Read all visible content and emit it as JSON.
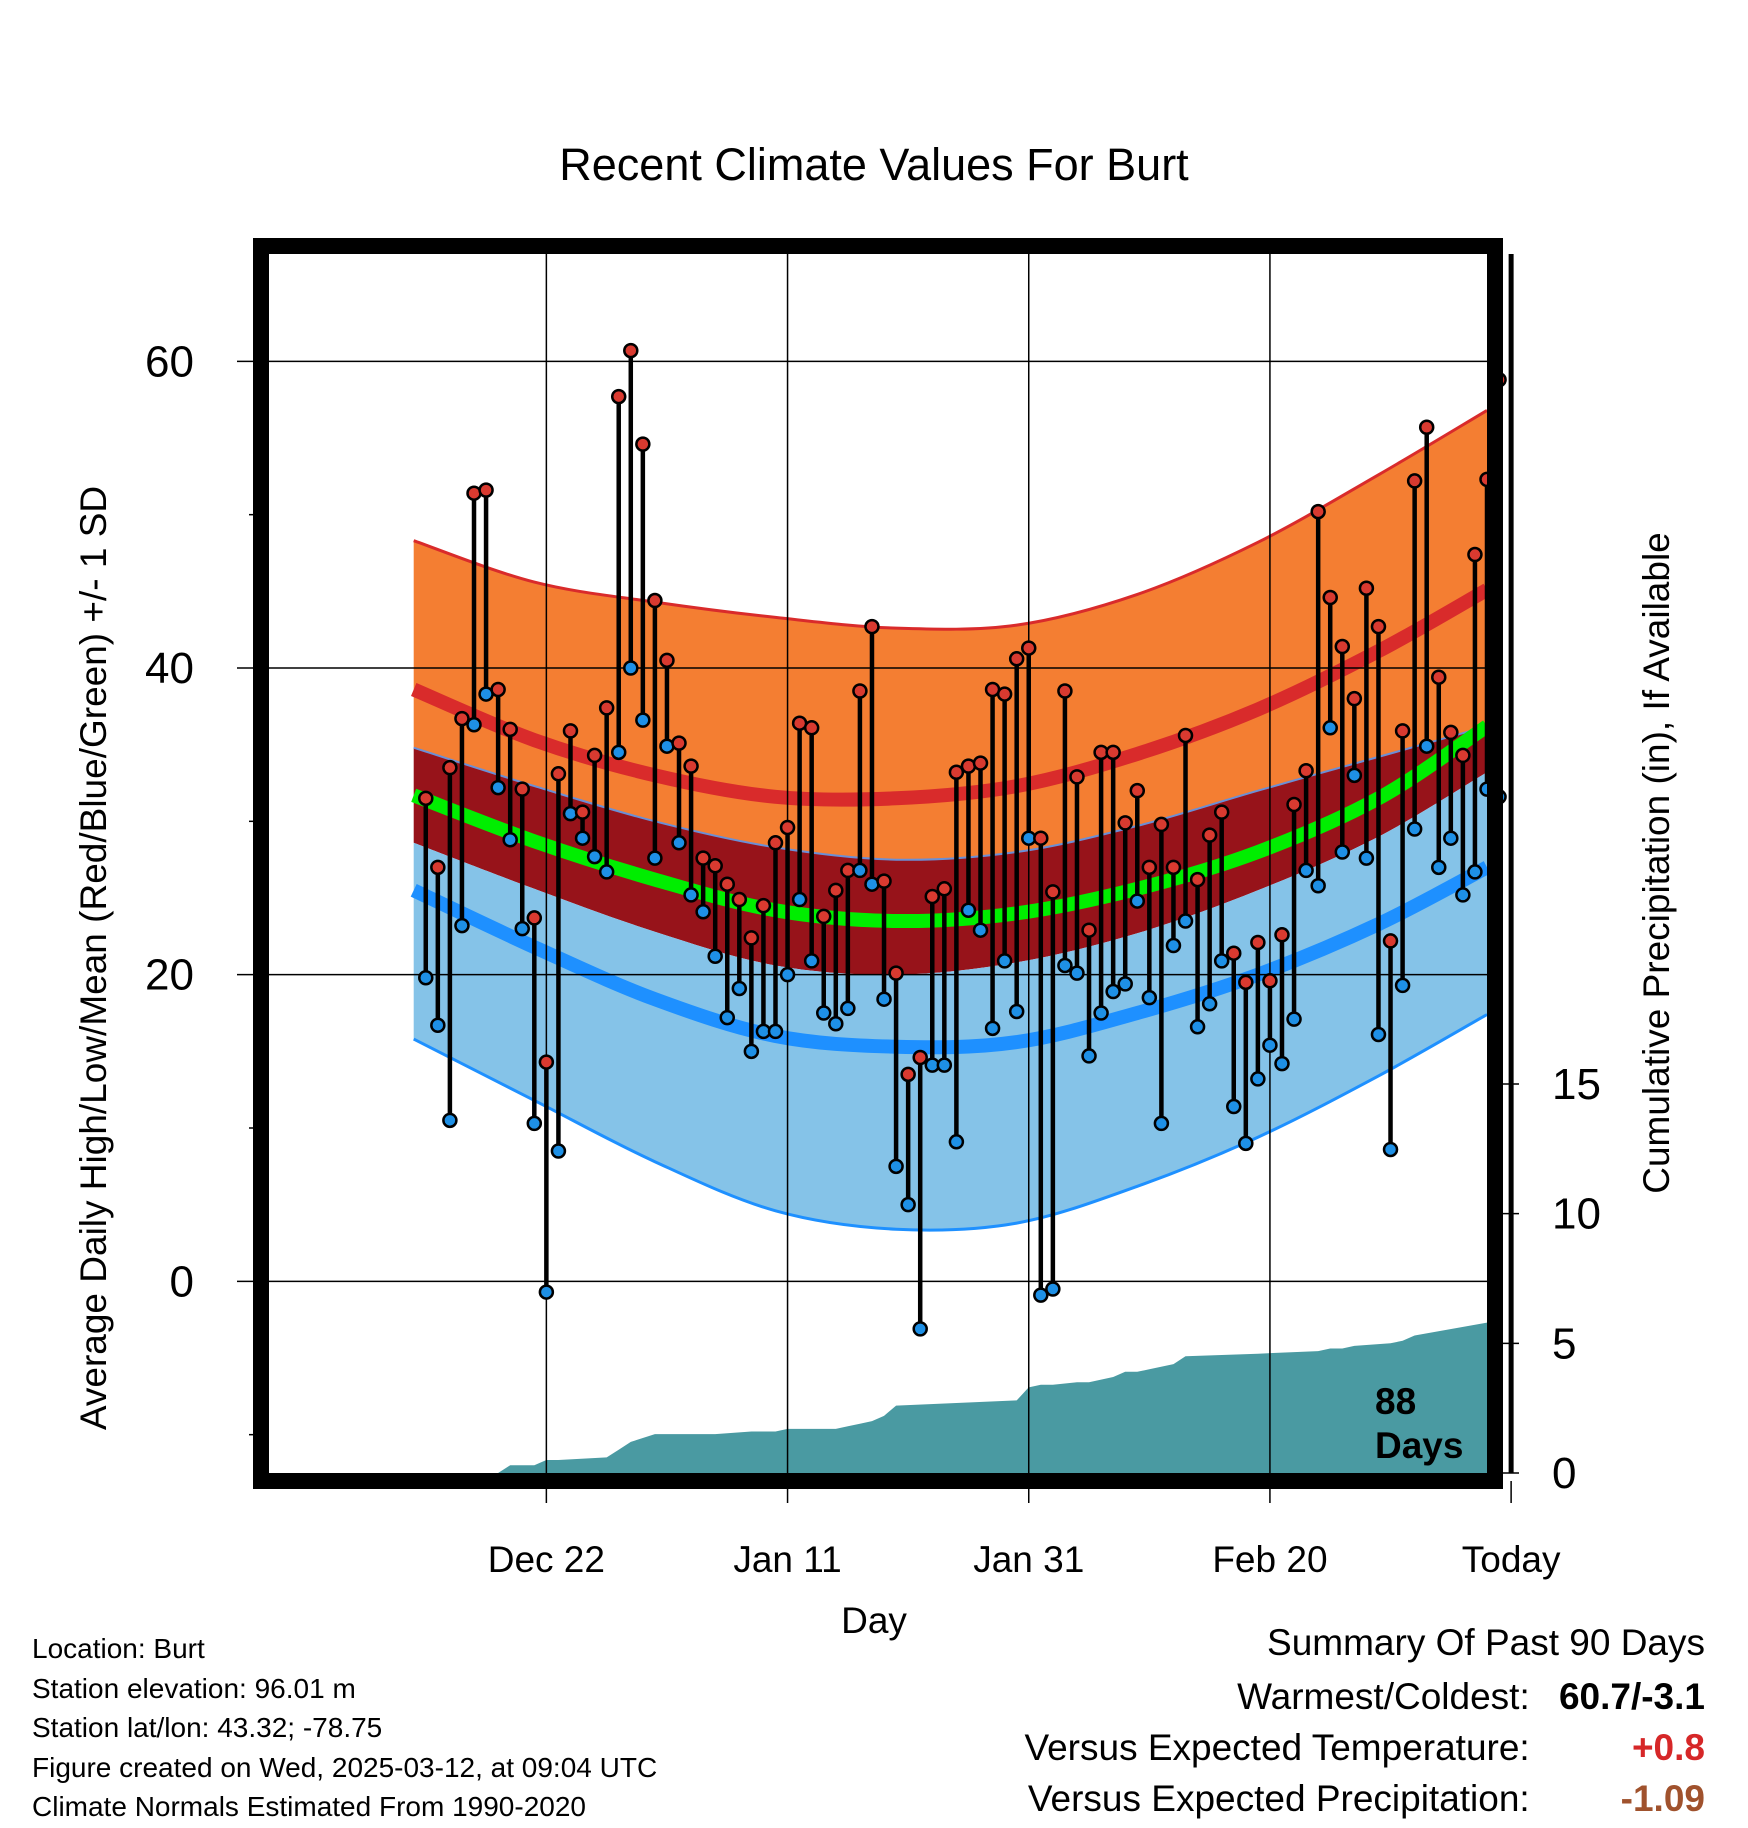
{
  "title": "Recent Climate Values For Burt",
  "colors": {
    "record_high_band": "#f47e32",
    "record_high_line": "#d92b2b",
    "normal_band": "#97131a",
    "mean_line": "#00ee00",
    "low_band": "#85c3e8",
    "low_line": "#1e90ff",
    "precip": "#4a9aa2",
    "high_marker": "#d93a30",
    "low_marker": "#1e90e6",
    "warm_delta": "#d62728",
    "precip_delta": "#a0522d"
  },
  "chart_data": {
    "type": "line",
    "title": "Recent Climate Values For Burt",
    "xlabel": "Day",
    "ylabel_left": "Average Daily High/Low/Mean (Red/Blue/Green) +/- 1 SD",
    "ylabel_right": "Cumulative Precipitation (in), If Available",
    "x_ticks": [
      "Dec 22",
      "Jan 11",
      "Jan 31",
      "Feb 20",
      "Today"
    ],
    "y_left_ticks": [
      "0",
      "20",
      "40",
      "60"
    ],
    "y_left_range": [
      -12.5,
      67
    ],
    "y_right_ticks": [
      "0",
      "5",
      "10",
      "15"
    ],
    "y_right_range": [
      0,
      47
    ],
    "x_range": [
      -12,
      89
    ],
    "today_label": "88\nDays",
    "normals": {
      "x": [
        0,
        10,
        20,
        30,
        40,
        50,
        60,
        70,
        80,
        89
      ],
      "high_plus_sd": [
        48.3,
        45.6,
        44.3,
        43.3,
        42.6,
        42.8,
        44.8,
        48.2,
        52.6,
        56.8
      ],
      "high_mean": [
        38.6,
        35.3,
        33.0,
        31.6,
        31.5,
        32.3,
        34.4,
        37.3,
        41.1,
        45.1
      ],
      "high_minus_sd": [
        34.8,
        32.3,
        30.0,
        28.3,
        27.5,
        28.0,
        29.7,
        32.0,
        34.2,
        36.2
      ],
      "mean": [
        31.7,
        28.7,
        26.2,
        24.2,
        23.5,
        24.0,
        25.6,
        28.0,
        31.5,
        36.2
      ],
      "low_plus_sd": [
        28.6,
        25.6,
        22.8,
        20.6,
        20.0,
        20.8,
        22.7,
        25.5,
        29.0,
        33.2
      ],
      "low_mean": [
        25.5,
        21.8,
        18.4,
        16.0,
        15.3,
        15.6,
        17.5,
        20.0,
        23.3,
        27.0
      ],
      "low_minus_sd": [
        15.8,
        11.8,
        7.8,
        4.6,
        3.4,
        3.8,
        6.2,
        9.4,
        13.4,
        17.4
      ]
    },
    "daily": [
      {
        "x": 1,
        "high": 31.5,
        "low": 19.8
      },
      {
        "x": 2,
        "high": 27.0,
        "low": 16.7
      },
      {
        "x": 3,
        "high": 33.5,
        "low": 10.5
      },
      {
        "x": 4,
        "high": 36.7,
        "low": 23.2
      },
      {
        "x": 5,
        "high": 51.4,
        "low": 36.3
      },
      {
        "x": 6,
        "high": 51.6,
        "low": 38.3
      },
      {
        "x": 7,
        "high": 38.6,
        "low": 32.2
      },
      {
        "x": 8,
        "high": 36.0,
        "low": 28.8
      },
      {
        "x": 9,
        "high": 32.1,
        "low": 23.0
      },
      {
        "x": 10,
        "high": 23.7,
        "low": 10.3
      },
      {
        "x": 11,
        "high": 14.3,
        "low": -0.7
      },
      {
        "x": 12,
        "high": 33.1,
        "low": 8.5
      },
      {
        "x": 13,
        "high": 35.9,
        "low": 30.5
      },
      {
        "x": 14,
        "high": 30.6,
        "low": 28.9
      },
      {
        "x": 15,
        "high": 34.3,
        "low": 27.7
      },
      {
        "x": 16,
        "high": 37.4,
        "low": 26.7
      },
      {
        "x": 17,
        "high": 57.7,
        "low": 34.5
      },
      {
        "x": 18,
        "high": 60.7,
        "low": 40.0
      },
      {
        "x": 19,
        "high": 54.6,
        "low": 36.6
      },
      {
        "x": 20,
        "high": 44.4,
        "low": 27.6
      },
      {
        "x": 21,
        "high": 40.5,
        "low": 34.9
      },
      {
        "x": 22,
        "high": 35.1,
        "low": 28.6
      },
      {
        "x": 23,
        "high": 33.6,
        "low": 25.2
      },
      {
        "x": 24,
        "high": 27.6,
        "low": 24.1
      },
      {
        "x": 25,
        "high": 27.1,
        "low": 21.2
      },
      {
        "x": 26,
        "high": 25.9,
        "low": 17.2
      },
      {
        "x": 27,
        "high": 24.9,
        "low": 19.1
      },
      {
        "x": 28,
        "high": 22.4,
        "low": 15.0
      },
      {
        "x": 29,
        "high": 24.5,
        "low": 16.3
      },
      {
        "x": 30,
        "high": 28.6,
        "low": 16.3
      },
      {
        "x": 31,
        "high": 29.6,
        "low": 20.0
      },
      {
        "x": 32,
        "high": 36.4,
        "low": 24.9
      },
      {
        "x": 33,
        "high": 36.1,
        "low": 20.9
      },
      {
        "x": 34,
        "high": 23.8,
        "low": 17.5
      },
      {
        "x": 35,
        "high": 25.5,
        "low": 16.8
      },
      {
        "x": 36,
        "high": 26.8,
        "low": 17.8
      },
      {
        "x": 37,
        "high": 38.5,
        "low": 26.8
      },
      {
        "x": 38,
        "high": 42.7,
        "low": 25.9
      },
      {
        "x": 39,
        "high": 26.1,
        "low": 18.4
      },
      {
        "x": 40,
        "high": 20.1,
        "low": 7.5
      },
      {
        "x": 41,
        "high": 13.5,
        "low": 5.0
      },
      {
        "x": 42,
        "high": 14.6,
        "low": -3.1
      },
      {
        "x": 43,
        "high": 25.1,
        "low": 14.1
      },
      {
        "x": 44,
        "high": 25.6,
        "low": 14.1
      },
      {
        "x": 45,
        "high": 33.2,
        "low": 9.1
      },
      {
        "x": 46,
        "high": 33.6,
        "low": 24.2
      },
      {
        "x": 47,
        "high": 33.8,
        "low": 22.9
      },
      {
        "x": 48,
        "high": 38.6,
        "low": 16.5
      },
      {
        "x": 49,
        "high": 38.3,
        "low": 20.9
      },
      {
        "x": 50,
        "high": 40.6,
        "low": 17.6
      },
      {
        "x": 51,
        "high": 41.3,
        "low": 28.9
      },
      {
        "x": 52,
        "high": 28.9,
        "low": -0.9
      },
      {
        "x": 53,
        "high": 25.4,
        "low": -0.5
      },
      {
        "x": 54,
        "high": 38.5,
        "low": 20.6
      },
      {
        "x": 55,
        "high": 32.9,
        "low": 20.1
      },
      {
        "x": 56,
        "high": 22.9,
        "low": 14.7
      },
      {
        "x": 57,
        "high": 34.5,
        "low": 17.5
      },
      {
        "x": 58,
        "high": 34.5,
        "low": 18.9
      },
      {
        "x": 59,
        "high": 29.9,
        "low": 19.4
      },
      {
        "x": 60,
        "high": 32.0,
        "low": 24.8
      },
      {
        "x": 61,
        "high": 27.0,
        "low": 18.5
      },
      {
        "x": 62,
        "high": 29.8,
        "low": 10.3
      },
      {
        "x": 63,
        "high": 27.0,
        "low": 21.9
      },
      {
        "x": 64,
        "high": 35.6,
        "low": 23.5
      },
      {
        "x": 65,
        "high": 26.2,
        "low": 16.6
      },
      {
        "x": 66,
        "high": 29.1,
        "low": 18.1
      },
      {
        "x": 67,
        "high": 30.6,
        "low": 20.9
      },
      {
        "x": 68,
        "high": 21.4,
        "low": 11.4
      },
      {
        "x": 69,
        "high": 19.5,
        "low": 9.0
      },
      {
        "x": 70,
        "high": 22.1,
        "low": 13.2
      },
      {
        "x": 71,
        "high": 19.6,
        "low": 15.4
      },
      {
        "x": 72,
        "high": 22.6,
        "low": 14.2
      },
      {
        "x": 73,
        "high": 31.1,
        "low": 17.1
      },
      {
        "x": 74,
        "high": 33.3,
        "low": 26.8
      },
      {
        "x": 75,
        "high": 50.2,
        "low": 25.8
      },
      {
        "x": 76,
        "high": 44.6,
        "low": 36.1
      },
      {
        "x": 77,
        "high": 41.4,
        "low": 28.0
      },
      {
        "x": 78,
        "high": 38.0,
        "low": 33.0
      },
      {
        "x": 79,
        "high": 45.2,
        "low": 27.6
      },
      {
        "x": 80,
        "high": 42.7,
        "low": 16.1
      },
      {
        "x": 81,
        "high": 22.2,
        "low": 8.6
      },
      {
        "x": 82,
        "high": 35.9,
        "low": 19.3
      },
      {
        "x": 83,
        "high": 52.2,
        "low": 29.5
      },
      {
        "x": 84,
        "high": 55.7,
        "low": 34.9
      },
      {
        "x": 85,
        "high": 39.4,
        "low": 27.0
      },
      {
        "x": 86,
        "high": 35.8,
        "low": 28.9
      },
      {
        "x": 87,
        "high": 34.3,
        "low": 25.2
      },
      {
        "x": 88,
        "high": 47.4,
        "low": 26.7
      },
      {
        "x": 89,
        "high": 52.3,
        "low": 32.1
      },
      {
        "x": 90,
        "high": 58.8,
        "low": 31.6
      }
    ],
    "precip_cumulative": {
      "x": [
        0,
        7,
        8,
        9,
        10,
        11,
        12,
        16,
        17,
        18,
        20,
        25,
        28,
        29,
        30,
        31,
        35,
        36,
        37,
        38,
        39,
        40,
        45,
        50,
        51,
        52,
        53,
        55,
        56,
        57,
        58,
        59,
        60,
        61,
        63,
        64,
        70,
        75,
        76,
        77,
        78,
        81,
        82,
        83,
        89
      ],
      "y": [
        0,
        0,
        0.3,
        0.3,
        0.3,
        0.5,
        0.5,
        0.6,
        0.9,
        1.2,
        1.5,
        1.5,
        1.6,
        1.6,
        1.6,
        1.7,
        1.7,
        1.8,
        1.9,
        2.0,
        2.2,
        2.6,
        2.7,
        2.8,
        3.3,
        3.4,
        3.4,
        3.5,
        3.5,
        3.6,
        3.7,
        3.9,
        3.9,
        4.0,
        4.2,
        4.5,
        4.6,
        4.7,
        4.8,
        4.8,
        4.9,
        5.0,
        5.1,
        5.3,
        5.8
      ]
    }
  },
  "xlabel": "Day",
  "ylabel_left": "Average Daily High/Low/Mean (Red/Blue/Green) +/- 1 SD",
  "ylabel_right": "Cumulative Precipitation (in), If Available",
  "info": {
    "location": "Location: Burt",
    "elevation": "Station elevation: 96.01 m",
    "latlon": "Station lat/lon: 43.32; -78.75",
    "created": "Figure created on Wed, 2025-03-12, at 09:04 UTC",
    "normals": "Climate Normals Estimated From 1990-2020"
  },
  "summary": {
    "heading": "Summary Of Past 90 Days",
    "warmest_label": "Warmest/Coldest:",
    "warmest_value": "60.7/-3.1",
    "temp_label": "Versus Expected Temperature:",
    "temp_value": "+0.8",
    "precip_label": "Versus Expected Precipitation:",
    "precip_value": "-1.09"
  }
}
